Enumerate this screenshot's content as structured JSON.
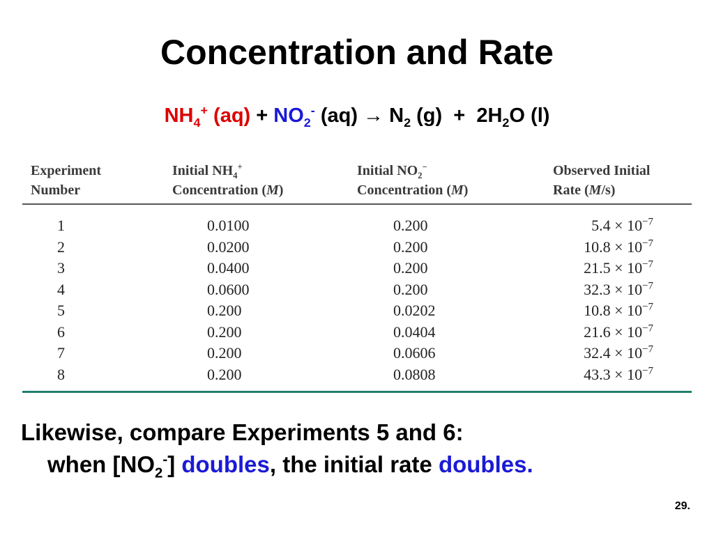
{
  "slide": {
    "title": "Concentration and Rate",
    "page_number": "29."
  },
  "equation": {
    "reactant1": "NH",
    "reactant1_sub": "4",
    "reactant1_sup": "+",
    "reactant1_state": "(aq)",
    "plus1": "+",
    "reactant2": "NO",
    "reactant2_sub": "2",
    "reactant2_sup": "-",
    "reactant2_state": "(aq)",
    "arrow": "→",
    "product1": "N",
    "product1_sub": "2",
    "product1_state": "(g)",
    "plus2": "+",
    "product2_coef": "2H",
    "product2_sub": "2",
    "product2_rest": "O (l)",
    "colors": {
      "reactant1": "#dd0000",
      "reactant2": "#1a1ad6"
    }
  },
  "table": {
    "headers": {
      "col1_line1": "Experiment",
      "col1_line2": "Number",
      "col2_line1": "Initial NH",
      "col2_sub": "4",
      "col2_sup": "+",
      "col2_line2a": "Concentration (",
      "col2_unit": "M",
      "col2_line2b": ")",
      "col3_line1": "Initial NO",
      "col3_sub": "2",
      "col3_sup": "−",
      "col3_line2a": "Concentration (",
      "col3_unit": "M",
      "col3_line2b": ")",
      "col4_line1": "Observed Initial",
      "col4_line2a": "Rate (",
      "col4_unit": "M",
      "col4_line2b": "/s)"
    },
    "times": "×",
    "base": "10",
    "rows": [
      {
        "exp": "1",
        "nh4": "0.0100",
        "no2": "0.200",
        "rate": "5.4",
        "exp10": "−7"
      },
      {
        "exp": "2",
        "nh4": "0.0200",
        "no2": "0.200",
        "rate": "10.8",
        "exp10": "−7"
      },
      {
        "exp": "3",
        "nh4": "0.0400",
        "no2": "0.200",
        "rate": "21.5",
        "exp10": "−7"
      },
      {
        "exp": "4",
        "nh4": "0.0600",
        "no2": "0.200",
        "rate": "32.3",
        "exp10": "−7"
      },
      {
        "exp": "5",
        "nh4": "0.200",
        "no2": "0.0202",
        "rate": "10.8",
        "exp10": "−7"
      },
      {
        "exp": "6",
        "nh4": "0.200",
        "no2": "0.0404",
        "rate": "21.6",
        "exp10": "−7"
      },
      {
        "exp": "7",
        "nh4": "0.200",
        "no2": "0.0606",
        "rate": "32.4",
        "exp10": "−7"
      },
      {
        "exp": "8",
        "nh4": "0.200",
        "no2": "0.0808",
        "rate": "43.3",
        "exp10": "−7"
      }
    ],
    "accent_color": "#1e7f6e"
  },
  "note": {
    "line1": "Likewise, compare Experiments 5 and 6:",
    "line2_a": "when [NO",
    "line2_sub": "2",
    "line2_sup": "-",
    "line2_b": "] ",
    "line2_c": "doubles",
    "line2_d": ", the initial rate ",
    "line2_e": "doubles.",
    "highlight_color": "#1a1ad6"
  }
}
